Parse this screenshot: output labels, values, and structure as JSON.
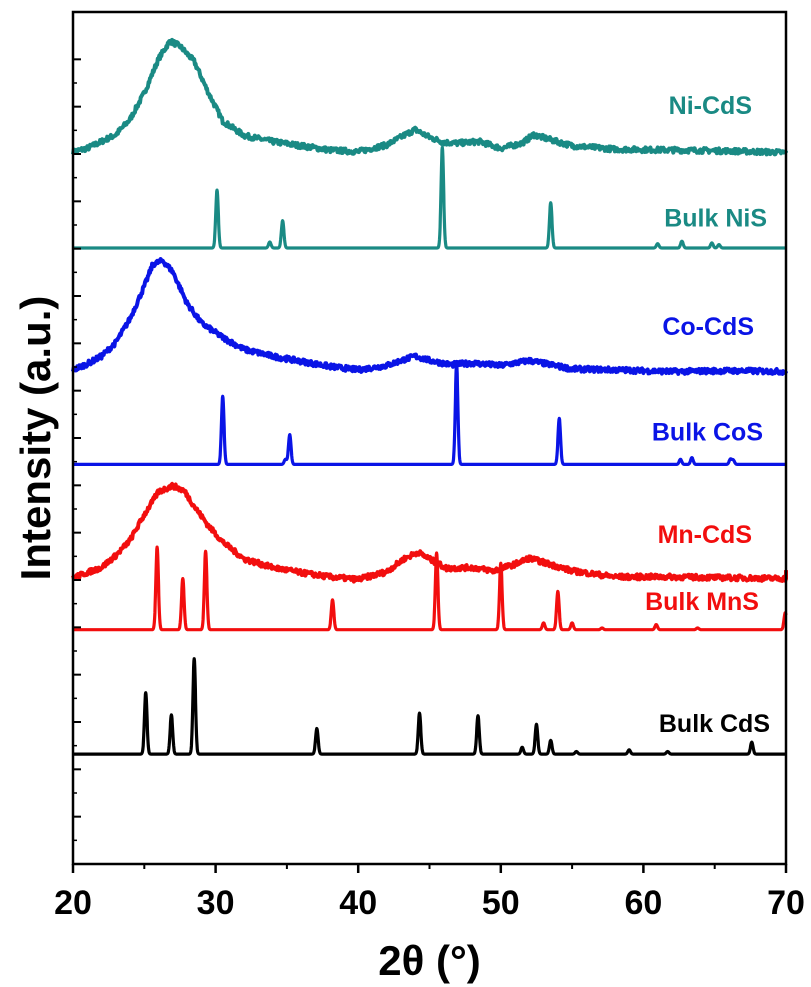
{
  "chart_data": {
    "type": "line",
    "xlabel": "2θ (°)",
    "ylabel": "Intensity (a.u.)",
    "xlim": [
      20,
      70
    ],
    "xticks": [
      20,
      30,
      40,
      50,
      60,
      70
    ],
    "ylim": [
      0,
      1
    ],
    "grid": false,
    "legend": "inline labels at right",
    "series": [
      {
        "name": "Ni-CdS",
        "color": "#1a8a84",
        "kind": "broad",
        "points": [
          [
            20,
            0.836
          ],
          [
            21,
            0.84
          ],
          [
            22,
            0.848
          ],
          [
            23,
            0.856
          ],
          [
            24,
            0.874
          ],
          [
            25,
            0.905
          ],
          [
            26,
            0.945
          ],
          [
            26.8,
            0.966
          ],
          [
            27.5,
            0.96
          ],
          [
            28.5,
            0.942
          ],
          [
            29.5,
            0.905
          ],
          [
            30.5,
            0.872
          ],
          [
            32,
            0.855
          ],
          [
            34,
            0.848
          ],
          [
            36,
            0.843
          ],
          [
            38,
            0.838
          ],
          [
            40,
            0.836
          ],
          [
            42,
            0.844
          ],
          [
            43.2,
            0.855
          ],
          [
            44,
            0.862
          ],
          [
            45,
            0.853
          ],
          [
            46,
            0.847
          ],
          [
            47,
            0.846
          ],
          [
            48.5,
            0.848
          ],
          [
            50,
            0.84
          ],
          [
            51.5,
            0.846
          ],
          [
            52.3,
            0.856
          ],
          [
            53.5,
            0.85
          ],
          [
            55,
            0.843
          ],
          [
            58,
            0.839
          ],
          [
            62,
            0.838
          ],
          [
            66,
            0.837
          ],
          [
            70,
            0.835
          ]
        ]
      },
      {
        "name": "Bulk NiS",
        "color": "#1a8a84",
        "kind": "peaks",
        "baseline": 0.723,
        "peaks": [
          [
            30.1,
            0.068
          ],
          [
            33.8,
            0.007
          ],
          [
            34.7,
            0.032
          ],
          [
            45.9,
            0.118
          ],
          [
            53.5,
            0.053
          ],
          [
            61.0,
            0.005
          ],
          [
            62.7,
            0.008
          ],
          [
            64.8,
            0.006
          ],
          [
            65.3,
            0.004
          ]
        ]
      },
      {
        "name": "Co-CdS",
        "color": "#0a14e6",
        "kind": "broad",
        "points": [
          [
            20,
            0.58
          ],
          [
            21,
            0.587
          ],
          [
            22,
            0.596
          ],
          [
            23,
            0.612
          ],
          [
            24,
            0.64
          ],
          [
            25,
            0.678
          ],
          [
            25.6,
            0.704
          ],
          [
            26.3,
            0.708
          ],
          [
            27,
            0.695
          ],
          [
            28,
            0.658
          ],
          [
            29,
            0.635
          ],
          [
            30.5,
            0.618
          ],
          [
            32,
            0.604
          ],
          [
            34,
            0.596
          ],
          [
            36,
            0.59
          ],
          [
            38,
            0.584
          ],
          [
            40,
            0.58
          ],
          [
            42,
            0.585
          ],
          [
            43.2,
            0.592
          ],
          [
            44,
            0.596
          ],
          [
            45,
            0.591
          ],
          [
            46.5,
            0.586
          ],
          [
            48,
            0.588
          ],
          [
            50,
            0.585
          ],
          [
            52,
            0.591
          ],
          [
            53.5,
            0.586
          ],
          [
            55,
            0.581
          ],
          [
            58,
            0.58
          ],
          [
            62,
            0.578
          ],
          [
            66,
            0.579
          ],
          [
            70,
            0.578
          ]
        ]
      },
      {
        "name": "Bulk CoS",
        "color": "#0a14e6",
        "kind": "peaks",
        "baseline": 0.469,
        "peaks": [
          [
            30.5,
            0.08
          ],
          [
            34.9,
            0.006
          ],
          [
            35.2,
            0.035
          ],
          [
            46.9,
            0.118
          ],
          [
            54.1,
            0.054
          ],
          [
            62.6,
            0.006
          ],
          [
            63.4,
            0.008
          ],
          [
            66.1,
            0.006
          ],
          [
            66.3,
            0.005
          ]
        ]
      },
      {
        "name": "Mn-CdS",
        "color": "#f20e0e",
        "kind": "broad",
        "points": [
          [
            20,
            0.336
          ],
          [
            21,
            0.342
          ],
          [
            22,
            0.348
          ],
          [
            23,
            0.362
          ],
          [
            24,
            0.38
          ],
          [
            25,
            0.41
          ],
          [
            26,
            0.437
          ],
          [
            27,
            0.444
          ],
          [
            27.8,
            0.438
          ],
          [
            28.5,
            0.42
          ],
          [
            29.5,
            0.397
          ],
          [
            30.5,
            0.378
          ],
          [
            32,
            0.358
          ],
          [
            34,
            0.348
          ],
          [
            36,
            0.342
          ],
          [
            38,
            0.337
          ],
          [
            40,
            0.334
          ],
          [
            42,
            0.343
          ],
          [
            43.2,
            0.358
          ],
          [
            44.2,
            0.366
          ],
          [
            45,
            0.358
          ],
          [
            46.2,
            0.347
          ],
          [
            48,
            0.348
          ],
          [
            49.5,
            0.344
          ],
          [
            51,
            0.352
          ],
          [
            52,
            0.359
          ],
          [
            53,
            0.354
          ],
          [
            55,
            0.344
          ],
          [
            58,
            0.337
          ],
          [
            62,
            0.337
          ],
          [
            66,
            0.336
          ],
          [
            70,
            0.335
          ],
          [
            70,
            0.345
          ]
        ]
      },
      {
        "name": "Bulk MnS",
        "color": "#f20e0e",
        "kind": "peaks",
        "baseline": 0.275,
        "peaks": [
          [
            25.9,
            0.097
          ],
          [
            27.7,
            0.06
          ],
          [
            29.3,
            0.092
          ],
          [
            38.2,
            0.035
          ],
          [
            45.5,
            0.09
          ],
          [
            50.0,
            0.078
          ],
          [
            53.0,
            0.008
          ],
          [
            54.0,
            0.045
          ],
          [
            55.0,
            0.008
          ],
          [
            57.1,
            0.002
          ],
          [
            60.9,
            0.006
          ],
          [
            63.8,
            0.002
          ],
          [
            69.95,
            0.02
          ]
        ]
      },
      {
        "name": "Bulk CdS",
        "color": "#000000",
        "kind": "peaks",
        "baseline": 0.129,
        "peaks": [
          [
            25.1,
            0.072
          ],
          [
            26.9,
            0.046
          ],
          [
            28.5,
            0.112
          ],
          [
            37.1,
            0.03
          ],
          [
            44.3,
            0.048
          ],
          [
            48.4,
            0.045
          ],
          [
            51.5,
            0.008
          ],
          [
            52.5,
            0.035
          ],
          [
            53.5,
            0.016
          ],
          [
            55.3,
            0.003
          ],
          [
            59.0,
            0.005
          ],
          [
            61.7,
            0.003
          ],
          [
            67.6,
            0.014
          ]
        ]
      }
    ]
  }
}
